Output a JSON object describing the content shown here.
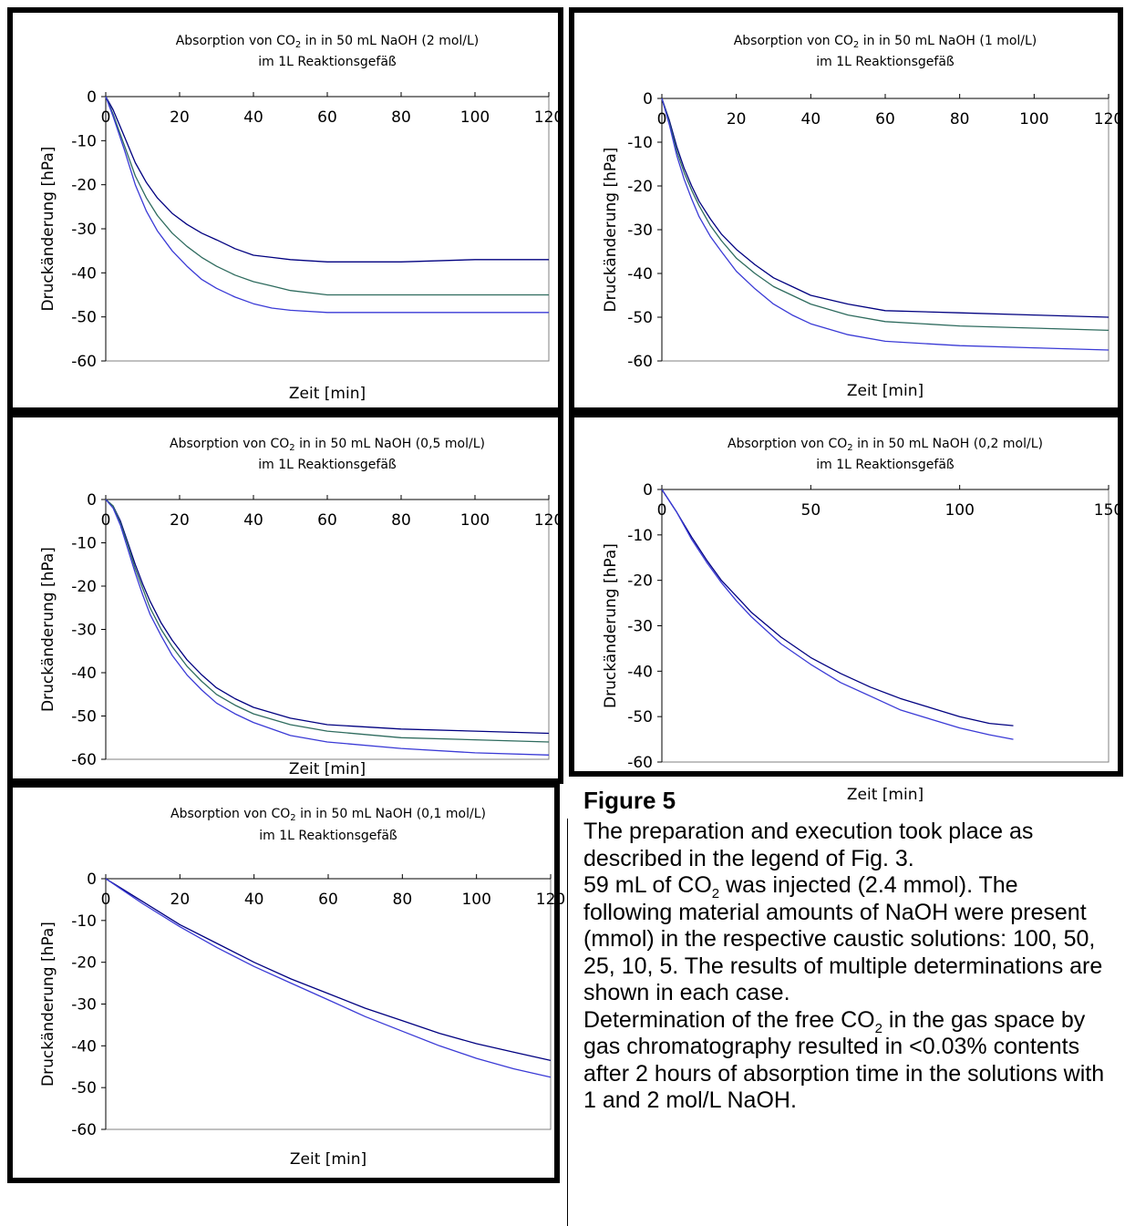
{
  "figure_label": "Figure 5",
  "caption": {
    "p1": "The preparation and execution took place as described in the legend of Fig. 3.",
    "p2_a": "59 mL of CO",
    "p2_sub": "2",
    "p2_b": " was injected (2.4 mmol). The following material amounts of NaOH were present (mmol) in the respective caustic solutions: 100, 50, 25, 10, 5. The results of multiple determinations are shown in each case.",
    "p3_a": "Determination of the free CO",
    "p3_sub": "2",
    "p3_b": " in the gas space by gas chromatography resulted in <0.03% contents after 2 hours of absorption time in the solutions with 1 and 2 mol/L NaOH."
  },
  "colors": {
    "series_dark": "#000080",
    "series_green": "#2e6b5e",
    "series_blue": "#3a3ad6"
  },
  "chart_data": [
    {
      "type": "line",
      "title_a": "Absorption von CO",
      "title_sub": "2",
      "title_b": " in in 50 mL NaOH (2 mol/L)",
      "title_line2": "im 1L Reaktionsgefäß",
      "xlabel": "Zeit  [min]",
      "ylabel": "Druckänderung  [hPa]",
      "xlim": [
        0,
        120
      ],
      "ylim": [
        -60,
        0
      ],
      "xticks": [
        0,
        20,
        40,
        60,
        80,
        100,
        120
      ],
      "yticks": [
        0,
        -10,
        -20,
        -30,
        -40,
        -50,
        -60
      ],
      "series": [
        {
          "color": "#000080",
          "x": [
            0,
            2,
            5,
            8,
            11,
            14,
            18,
            22,
            26,
            30,
            35,
            40,
            45,
            50,
            60,
            80,
            100,
            120
          ],
          "y": [
            0,
            -3,
            -9,
            -15,
            -19.5,
            -23,
            -26.5,
            -29,
            -31,
            -32.5,
            -34.5,
            -36,
            -36.5,
            -37,
            -37.5,
            -37.5,
            -37,
            -37
          ]
        },
        {
          "color": "#2e6b5e",
          "x": [
            0,
            2,
            5,
            8,
            11,
            14,
            18,
            22,
            26,
            30,
            35,
            40,
            45,
            50,
            60,
            80,
            100,
            120
          ],
          "y": [
            0,
            -4,
            -11,
            -18,
            -23,
            -27,
            -31,
            -34,
            -36.5,
            -38.5,
            -40.5,
            -42,
            -43,
            -44,
            -45,
            -45,
            -45,
            -45
          ]
        },
        {
          "color": "#3a3ad6",
          "x": [
            0,
            2,
            5,
            8,
            11,
            14,
            18,
            22,
            26,
            30,
            35,
            40,
            45,
            50,
            60,
            80,
            100,
            120
          ],
          "y": [
            0,
            -4.5,
            -12,
            -20,
            -26,
            -30.5,
            -35,
            -38.5,
            -41.5,
            -43.5,
            -45.5,
            -47,
            -48,
            -48.5,
            -49,
            -49,
            -49,
            -49
          ]
        }
      ]
    },
    {
      "type": "line",
      "title_a": "Absorption von CO",
      "title_sub": "2",
      "title_b": " in in 50 mL NaOH (1 mol/L)",
      "title_line2": "im 1L Reaktionsgefäß",
      "xlabel": "Zeit  [min]",
      "ylabel": "Druckänderung  [hPa]",
      "xlim": [
        0,
        120
      ],
      "ylim": [
        -60,
        0
      ],
      "xticks": [
        0,
        20,
        40,
        60,
        80,
        100,
        120
      ],
      "yticks": [
        0,
        -10,
        -20,
        -30,
        -40,
        -50,
        -60
      ],
      "series": [
        {
          "color": "#000080",
          "x": [
            0,
            2,
            4,
            6,
            8,
            10,
            13,
            16,
            20,
            25,
            30,
            35,
            40,
            50,
            60,
            80,
            100,
            120
          ],
          "y": [
            0,
            -5,
            -11,
            -16,
            -20,
            -23.5,
            -27.5,
            -31,
            -34.5,
            -38,
            -41,
            -43,
            -45,
            -47,
            -48.5,
            -49,
            -49.5,
            -50
          ]
        },
        {
          "color": "#2e6b5e",
          "x": [
            0,
            2,
            4,
            6,
            8,
            10,
            13,
            16,
            20,
            25,
            30,
            35,
            40,
            50,
            60,
            80,
            100,
            120
          ],
          "y": [
            0,
            -5.5,
            -12,
            -17,
            -21,
            -24.5,
            -29,
            -32.5,
            -36.5,
            -40,
            -43,
            -45,
            -47,
            -49.5,
            -51,
            -52,
            -52.5,
            -53
          ]
        },
        {
          "color": "#3a3ad6",
          "x": [
            0,
            2,
            4,
            6,
            8,
            10,
            13,
            16,
            20,
            25,
            30,
            35,
            40,
            50,
            60,
            80,
            100,
            120
          ],
          "y": [
            0,
            -6,
            -13,
            -18.5,
            -23,
            -27,
            -31.5,
            -35,
            -39.5,
            -43.5,
            -47,
            -49.5,
            -51.5,
            -54,
            -55.5,
            -56.5,
            -57,
            -57.5
          ]
        }
      ]
    },
    {
      "type": "line",
      "title_a": "Absorption von CO",
      "title_sub": "2",
      "title_b": " in in 50 mL NaOH (0,5 mol/L)",
      "title_line2": "im 1L Reaktionsgefäß",
      "xlabel": "Zeit  [min]",
      "ylabel": "Druckänderung  [hPa]",
      "xlim": [
        0,
        120
      ],
      "ylim": [
        -60,
        0
      ],
      "xticks": [
        0,
        20,
        40,
        60,
        80,
        100,
        120
      ],
      "yticks": [
        0,
        -10,
        -20,
        -30,
        -40,
        -50,
        -60
      ],
      "series": [
        {
          "color": "#000080",
          "x": [
            0,
            2,
            4,
            6,
            8,
            10,
            12,
            15,
            18,
            22,
            26,
            30,
            35,
            40,
            50,
            60,
            80,
            100,
            120
          ],
          "y": [
            0,
            -1.5,
            -5,
            -10,
            -15,
            -19.5,
            -23.5,
            -28.5,
            -32.5,
            -37,
            -40.5,
            -43.5,
            -46,
            -48,
            -50.5,
            -52,
            -53,
            -53.5,
            -54
          ]
        },
        {
          "color": "#2e6b5e",
          "x": [
            0,
            2,
            4,
            6,
            8,
            10,
            12,
            15,
            18,
            22,
            26,
            30,
            35,
            40,
            50,
            60,
            80,
            100,
            120
          ],
          "y": [
            0,
            -1.5,
            -5.5,
            -10.5,
            -16,
            -20.5,
            -25,
            -30,
            -34,
            -38.5,
            -42,
            -45,
            -47.5,
            -49.5,
            -52,
            -53.5,
            -55,
            -55.5,
            -56
          ]
        },
        {
          "color": "#3a3ad6",
          "x": [
            0,
            2,
            4,
            6,
            8,
            10,
            12,
            15,
            18,
            22,
            26,
            30,
            35,
            40,
            50,
            60,
            80,
            100,
            120
          ],
          "y": [
            0,
            -2,
            -6,
            -11.5,
            -17,
            -22,
            -26.5,
            -31.5,
            -36,
            -40.5,
            -44,
            -47,
            -49.5,
            -51.5,
            -54.5,
            -56,
            -57.5,
            -58.5,
            -59
          ]
        }
      ]
    },
    {
      "type": "line",
      "title_a": "Absorption von CO",
      "title_sub": "2",
      "title_b": " in in 50 mL NaOH (0,2 mol/L)",
      "title_line2": "im 1L Reaktionsgefäß",
      "xlabel": "Zeit [min]",
      "ylabel": "Druckänderung  [hPa]",
      "xlim": [
        0,
        150
      ],
      "ylim": [
        -60,
        0
      ],
      "xticks": [
        0,
        50,
        100,
        150
      ],
      "yticks": [
        0,
        -10,
        -20,
        -30,
        -40,
        -50,
        -60
      ],
      "series": [
        {
          "color": "#000080",
          "x": [
            0,
            5,
            10,
            15,
            20,
            25,
            30,
            40,
            50,
            60,
            70,
            80,
            90,
            100,
            110,
            118
          ],
          "y": [
            0,
            -5,
            -10.5,
            -15.5,
            -20,
            -23.5,
            -27,
            -32.5,
            -37,
            -40.5,
            -43.5,
            -46,
            -48,
            -50,
            -51.5,
            -52
          ]
        },
        {
          "color": "#3a3ad6",
          "x": [
            0,
            5,
            10,
            15,
            20,
            25,
            30,
            40,
            50,
            60,
            70,
            80,
            90,
            100,
            110,
            118
          ],
          "y": [
            0,
            -5,
            -11,
            -16,
            -20.5,
            -24.5,
            -28,
            -34,
            -38.5,
            -42.5,
            -45.5,
            -48.5,
            -50.5,
            -52.5,
            -54,
            -55
          ]
        }
      ]
    },
    {
      "type": "line",
      "title_a": "Absorption von CO",
      "title_sub": "2",
      "title_b": " in in 50 mL NaOH (0,1 mol/L)",
      "title_line2": "im 1L Reaktionsgefäß",
      "xlabel": "Zeit  [min]",
      "ylabel": "Druckänderung  [hPa]",
      "xlim": [
        0,
        120
      ],
      "ylim": [
        -60,
        0
      ],
      "xticks": [
        0,
        20,
        40,
        60,
        80,
        100,
        120
      ],
      "yticks": [
        0,
        -10,
        -20,
        -30,
        -40,
        -50,
        -60
      ],
      "series": [
        {
          "color": "#000080",
          "x": [
            0,
            10,
            20,
            30,
            40,
            50,
            60,
            70,
            80,
            90,
            100,
            110,
            120
          ],
          "y": [
            0,
            -5.5,
            -11,
            -15.5,
            -20,
            -24,
            -27.5,
            -31,
            -34,
            -37,
            -39.5,
            -41.5,
            -43.5
          ]
        },
        {
          "color": "#3a3ad6",
          "x": [
            0,
            10,
            20,
            30,
            40,
            50,
            60,
            70,
            80,
            90,
            100,
            110,
            120
          ],
          "y": [
            0,
            -6,
            -11.5,
            -16.5,
            -21,
            -25,
            -29,
            -33,
            -36.5,
            -40,
            -43,
            -45.5,
            -47.5
          ]
        }
      ]
    }
  ]
}
